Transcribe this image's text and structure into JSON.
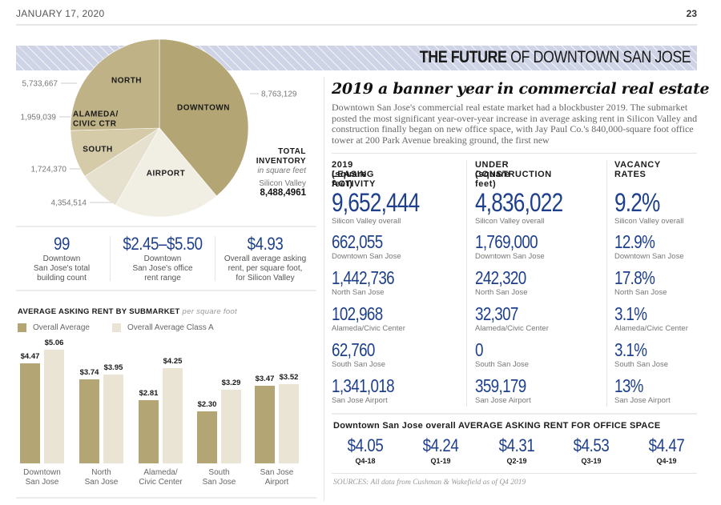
{
  "header": {
    "date": "JANUARY 17, 2020",
    "page_number": "23"
  },
  "banner": {
    "title_bold": "THE FUTURE",
    "title_rest": " OF DOWNTOWN SAN JOSE"
  },
  "colors": {
    "navy": "#1d3f8c",
    "gold": "#b3a574",
    "cream": "#e9e4d4",
    "banner": "#cfd3e6"
  },
  "pie": {
    "title_line1": "TOTAL",
    "title_line2": "INVENTORY",
    "title_unit": "in square feet",
    "total_label": "Silicon Valley",
    "total_value": "8,488,4961"
  },
  "stats": [
    {
      "value": "99",
      "desc": [
        "Downtown",
        "San Jose's total",
        "building count"
      ]
    },
    {
      "value": "$2.45–$5.50",
      "desc": [
        "Downtown",
        "San Jose's office",
        "rent range"
      ]
    },
    {
      "value": "$4.93",
      "desc": [
        "Overall average asking",
        "rent, per square foot,",
        "for Silicon Valley"
      ]
    }
  ],
  "bar_chart": {
    "title": "AVERAGE ASKING RENT BY SUBMARKET",
    "title_unit": " per square foot"
  },
  "article": {
    "headline": "2019 a banner year in commercial real estate",
    "lede": "Downtown San Jose's commercial real estate market had a blockbuster 2019. The submarket posted the most significant year-over-year increase in average asking rent in Silicon Valley and construction finally began on new office space, with Jay Paul Co.'s 840,000-square foot office tower at 200 Park Avenue breaking ground, the first new"
  },
  "columns": [
    {
      "heading": [
        "2019 LEASING ACTIVITY",
        "(square feet)"
      ],
      "rows": [
        {
          "value": "9,652,444",
          "label": "Silicon Valley overall"
        },
        {
          "value": "662,055",
          "label": "Downtown San Jose"
        },
        {
          "value": "1,442,736",
          "label": "North San Jose"
        },
        {
          "value": "102,968",
          "label": "Alameda/Civic Center"
        },
        {
          "value": "62,760",
          "label": "South San Jose"
        },
        {
          "value": "1,341,018",
          "label": "San Jose Airport"
        }
      ]
    },
    {
      "heading": [
        "UNDER CONSTRUCTION",
        "(square feet)"
      ],
      "rows": [
        {
          "value": "4,836,022",
          "label": "Silicon Valley overall"
        },
        {
          "value": "1,769,000",
          "label": "Downtown San Jose"
        },
        {
          "value": "242,320",
          "label": "North San Jose"
        },
        {
          "value": "32,307",
          "label": "Alameda/Civic Center"
        },
        {
          "value": "0",
          "label": "South San Jose"
        },
        {
          "value": "359,179",
          "label": "San Jose Airport"
        }
      ]
    },
    {
      "heading": [
        "VACANCY",
        "RATES"
      ],
      "rows": [
        {
          "value": "9.2%",
          "label": "Silicon Valley overall"
        },
        {
          "value": "12.9%",
          "label": "Downtown San Jose"
        },
        {
          "value": "17.8%",
          "label": "North San Jose"
        },
        {
          "value": "3.1%",
          "label": "Alameda/Civic Center"
        },
        {
          "value": "3.1%",
          "label": "South San Jose"
        },
        {
          "value": "13%",
          "label": "San Jose Airport"
        }
      ]
    }
  ],
  "rent_trend": {
    "heading_normal": "Downtown San Jose overall ",
    "heading_bold": "AVERAGE ASKING RENT FOR OFFICE SPACE",
    "quarters": [
      {
        "value": "$4.05",
        "label": "Q4-18"
      },
      {
        "value": "$4.24",
        "label": "Q1-19"
      },
      {
        "value": "$4.31",
        "label": "Q2-19"
      },
      {
        "value": "$4.53",
        "label": "Q3-19"
      },
      {
        "value": "$4.47",
        "label": "Q4-19"
      }
    ]
  },
  "sources": "SOURCES: All data from Cushman & Wakefield as of Q4 2019",
  "chart_data": [
    {
      "type": "pie",
      "title": "TOTAL INVENTORY in square feet",
      "categories": [
        "DOWNTOWN",
        "AIRPORT",
        "SOUTH",
        "ALAMEDA/ CIVIC CTR",
        "NORTH"
      ],
      "values": [
        8763129,
        4354514,
        1724370,
        1959039,
        5733667
      ],
      "value_labels": [
        "8,763,129",
        "4,354,514",
        "1,724,370",
        "1,959,039",
        "5,733,667"
      ],
      "colors": [
        "#b3a574",
        "#f1eee4",
        "#e6e1cf",
        "#d5cba8",
        "#bfb286"
      ]
    },
    {
      "type": "bar",
      "title": "AVERAGE ASKING RENT BY SUBMARKET per square foot",
      "categories": [
        "Downtown San Jose",
        "North San Jose",
        "Alameda/ Civic Center",
        "South San Jose",
        "San Jose Airport"
      ],
      "series": [
        {
          "name": "Overall Average",
          "color": "#b3a574",
          "values": [
            4.47,
            3.74,
            2.81,
            2.3,
            3.47
          ],
          "labels": [
            "$4.47",
            "$3.74",
            "$2.81",
            "$2.30",
            "$3.47"
          ]
        },
        {
          "name": "Overall Average Class A",
          "color": "#e9e4d4",
          "values": [
            5.06,
            3.95,
            4.25,
            3.29,
            3.52
          ],
          "labels": [
            "$5.06",
            "$3.95",
            "$4.25",
            "$3.29",
            "$3.52"
          ]
        }
      ],
      "ylim": [
        0,
        5.06
      ],
      "legend": "top-left",
      "grid": false
    }
  ]
}
